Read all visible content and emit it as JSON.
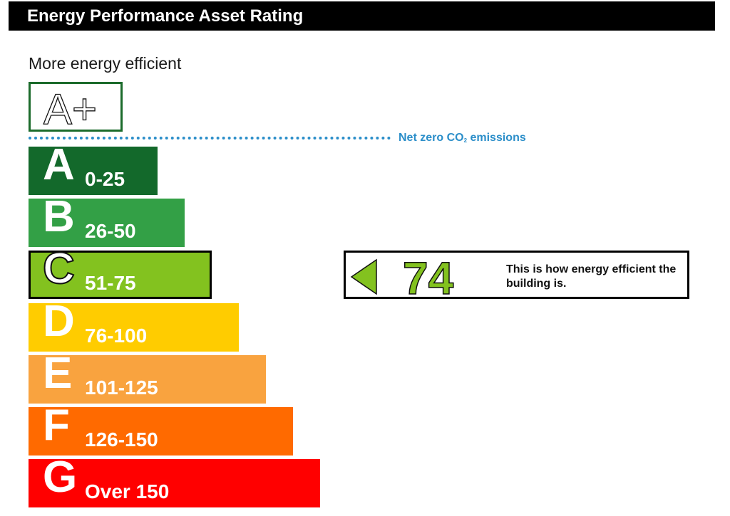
{
  "header": {
    "title": "Energy Performance Asset Rating"
  },
  "scale": {
    "top_label": "More energy efficient",
    "top_rating": "A+",
    "net_zero": {
      "prefix": "Net zero CO",
      "subscript": "2",
      "suffix": " emissions"
    }
  },
  "colors": {
    "A": "#13692b",
    "B": "#33a046",
    "C": "#83c21f",
    "D": "#ffcc00",
    "E": "#f9a33f",
    "F": "#ff6a00",
    "G": "#ff0000",
    "net_zero": "#2b8ec9",
    "current_rating": "#83c21f"
  },
  "chart_data": {
    "type": "bar",
    "categories": [
      "A",
      "B",
      "C",
      "D",
      "E",
      "F",
      "G"
    ],
    "ranges": [
      "0-25",
      "26-50",
      "51-75",
      "76-100",
      "101-125",
      "126-150",
      "Over 150"
    ],
    "current_band": "C",
    "current_value": 74,
    "current_text": "This is how energy efficient the building is."
  }
}
